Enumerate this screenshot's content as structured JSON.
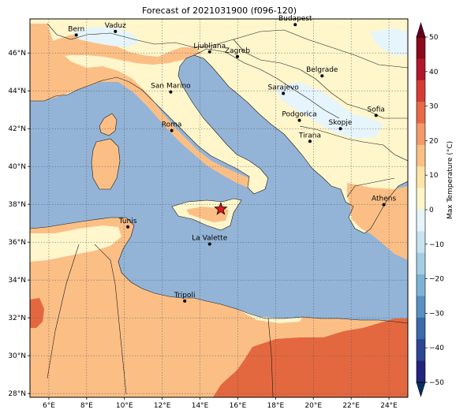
{
  "title": "Forecast of 2021031900 (f096-120)",
  "colors": {
    "sea": "#93b4d7",
    "land_warm": "#fbbf86",
    "land_hot": "#f39a6b",
    "land_very_hot": "#e4683f",
    "land_mild": "#fff6cc",
    "land_cool": "#e6f4fb",
    "border": "#1a1a1a"
  },
  "map": {
    "lon_range": [
      5,
      25
    ],
    "lat_range": [
      27.8,
      47.8
    ],
    "lon_ticks": [
      "6°E",
      "8°E",
      "10°E",
      "12°E",
      "14°E",
      "16°E",
      "18°E",
      "20°E",
      "22°E",
      "24°E"
    ],
    "lat_ticks": [
      "28°N",
      "30°N",
      "32°N",
      "34°N",
      "36°N",
      "38°N",
      "40°N",
      "42°N",
      "44°N",
      "46°N"
    ],
    "cities": [
      {
        "name": "Bern",
        "lon": 7.45,
        "lat": 46.95
      },
      {
        "name": "Vaduz",
        "lon": 9.52,
        "lat": 47.14
      },
      {
        "name": "Budapest",
        "lon": 19.04,
        "lat": 47.5
      },
      {
        "name": "Ljubljana",
        "lon": 14.51,
        "lat": 46.06
      },
      {
        "name": "Zagreb",
        "lon": 15.98,
        "lat": 45.81
      },
      {
        "name": "Belgrade",
        "lon": 20.46,
        "lat": 44.79
      },
      {
        "name": "San Marino",
        "lon": 12.45,
        "lat": 43.94
      },
      {
        "name": "Sarajevo",
        "lon": 18.41,
        "lat": 43.86
      },
      {
        "name": "Sofia",
        "lon": 23.32,
        "lat": 42.7
      },
      {
        "name": "Podgorica",
        "lon": 19.26,
        "lat": 42.44
      },
      {
        "name": "Skopje",
        "lon": 21.43,
        "lat": 42.0
      },
      {
        "name": "Roma",
        "lon": 12.5,
        "lat": 41.9
      },
      {
        "name": "Tirana",
        "lon": 19.82,
        "lat": 41.33
      },
      {
        "name": "Athens",
        "lon": 23.73,
        "lat": 37.98
      },
      {
        "name": "Tunis",
        "lon": 10.18,
        "lat": 36.81
      },
      {
        "name": "La Valette",
        "lon": 14.51,
        "lat": 35.9
      },
      {
        "name": "Tripoli",
        "lon": 13.19,
        "lat": 32.89
      }
    ],
    "marker": {
      "lon": 15.1,
      "lat": 37.75
    }
  },
  "colorbar": {
    "label": "Max Temperature (°C)",
    "ticks": [
      "50",
      "40",
      "30",
      "20",
      "10",
      "0",
      "−10",
      "−20",
      "−30",
      "−40",
      "−50"
    ],
    "colors": [
      "#67001f",
      "#b2182b",
      "#d6604d",
      "#f4a582",
      "#fddbc7",
      "#f7f7f7",
      "#d1e5f0",
      "#92c5de",
      "#4393c3",
      "#2166ac",
      "#053061"
    ],
    "bands": [
      "#8b0a1c",
      "#b2182b",
      "#d43d33",
      "#e8684a",
      "#f39a6b",
      "#fbbf86",
      "#fde5a8",
      "#fff6cc",
      "#e6f4fb",
      "#c7e3ef",
      "#a3cde3",
      "#7db3d5",
      "#5891c2",
      "#3b6aaa",
      "#2c4595",
      "#22237e"
    ]
  }
}
